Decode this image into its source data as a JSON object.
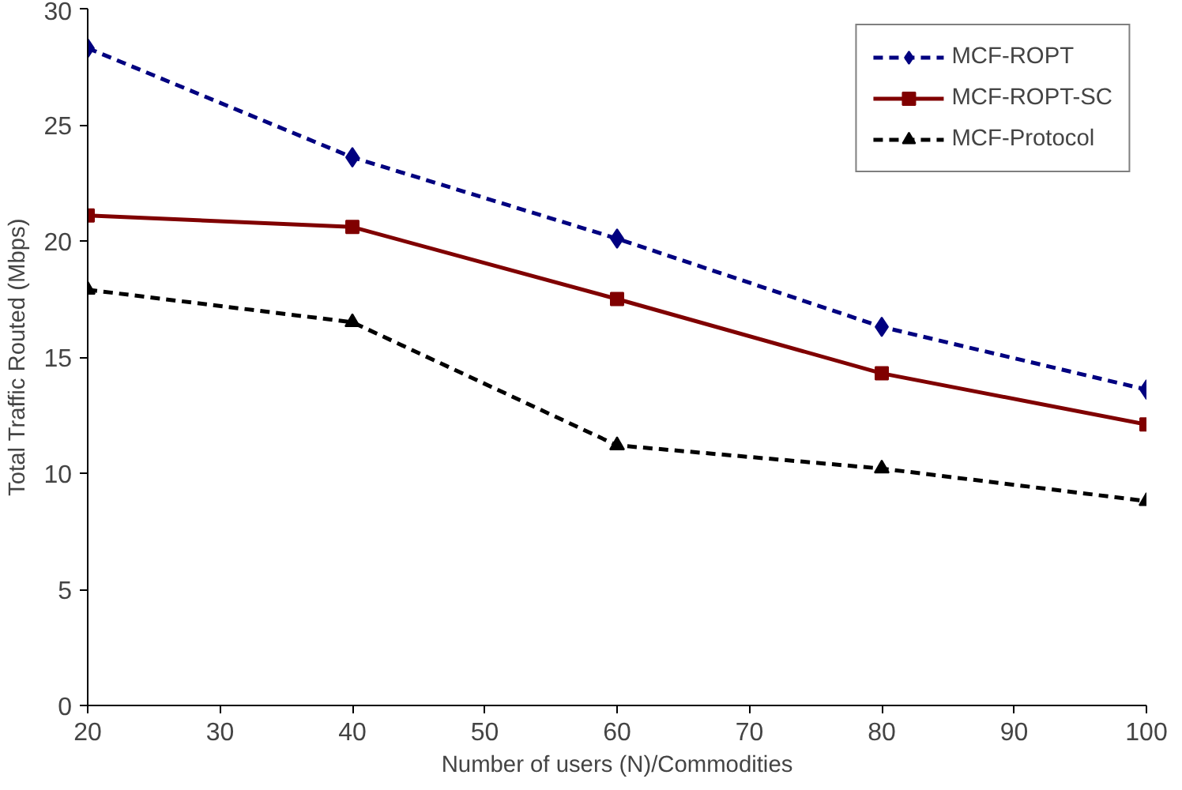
{
  "chart_data": {
    "type": "line",
    "xlabel": "Number of users (N)/Commodities",
    "ylabel": "Total Traffic Routed (Mbps)",
    "x": [
      20,
      40,
      60,
      80,
      100
    ],
    "series": [
      {
        "name": "MCF-ROPT",
        "color": "#000080",
        "values": [
          28.3,
          23.6,
          20.1,
          16.3,
          13.6
        ],
        "marker": "diamond",
        "line_style": "dashed"
      },
      {
        "name": "MCF-ROPT-SC",
        "color": "#800000",
        "values": [
          21.1,
          20.6,
          17.5,
          14.3,
          12.1
        ],
        "marker": "square",
        "line_style": "solid"
      },
      {
        "name": "MCF-Protocol",
        "color": "#000000",
        "values": [
          17.9,
          16.5,
          11.2,
          10.2,
          8.8
        ],
        "marker": "triangle",
        "line_style": "dashed"
      }
    ],
    "xlim": [
      20,
      100
    ],
    "xticks": [
      20,
      30,
      40,
      50,
      60,
      70,
      80,
      90,
      100
    ],
    "ylim": [
      0,
      30
    ],
    "yticks": [
      0,
      5,
      10,
      15,
      20,
      25,
      30
    ],
    "grid": false,
    "legend": "top right"
  }
}
